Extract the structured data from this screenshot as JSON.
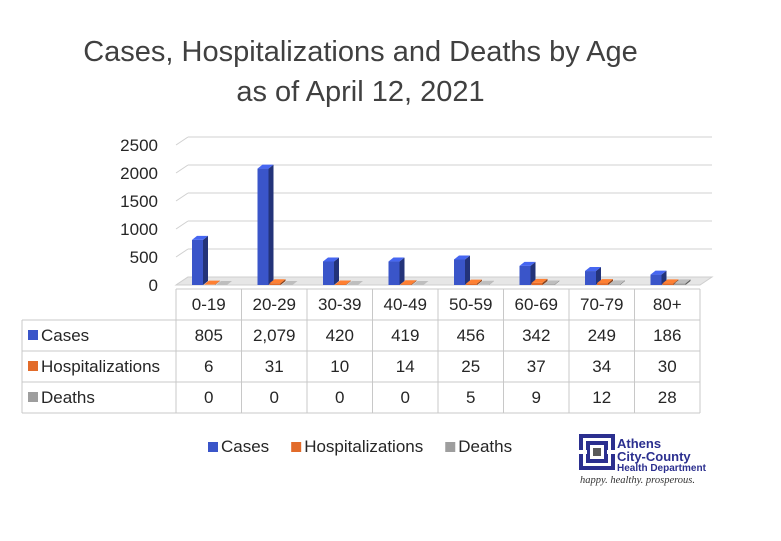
{
  "chart_data": {
    "type": "bar",
    "title": "Cases, Hospitalizations and Deaths by Age",
    "subtitle": "as of April 12, 2021",
    "categories": [
      "0-19",
      "20-29",
      "30-39",
      "40-49",
      "50-59",
      "60-69",
      "70-79",
      "80+"
    ],
    "series": [
      {
        "name": "Cases",
        "values": [
          805,
          2079,
          420,
          419,
          456,
          342,
          249,
          186
        ],
        "labels": [
          "805",
          "2,079",
          "420",
          "419",
          "456",
          "342",
          "249",
          "186"
        ],
        "color": "#3a55c9"
      },
      {
        "name": "Hospitalizations",
        "values": [
          6,
          31,
          10,
          14,
          25,
          37,
          34,
          30
        ],
        "labels": [
          "6",
          "31",
          "10",
          "14",
          "25",
          "37",
          "34",
          "30"
        ],
        "color": "#e26b2a"
      },
      {
        "name": "Deaths",
        "values": [
          0,
          0,
          0,
          0,
          5,
          9,
          12,
          28
        ],
        "labels": [
          "0",
          "0",
          "0",
          "0",
          "5",
          "9",
          "12",
          "28"
        ],
        "color": "#9e9e9e"
      }
    ],
    "yticks": [
      "0",
      "500",
      "1000",
      "1500",
      "2000",
      "2500"
    ],
    "ylim": [
      0,
      2500
    ],
    "grid": true,
    "legend": "bottom",
    "data_table": true
  },
  "logo": {
    "name_line1": "Athens",
    "name_line2": "City-County",
    "department": "Health Department",
    "tagline": "happy.  healthy.  prosperous."
  }
}
